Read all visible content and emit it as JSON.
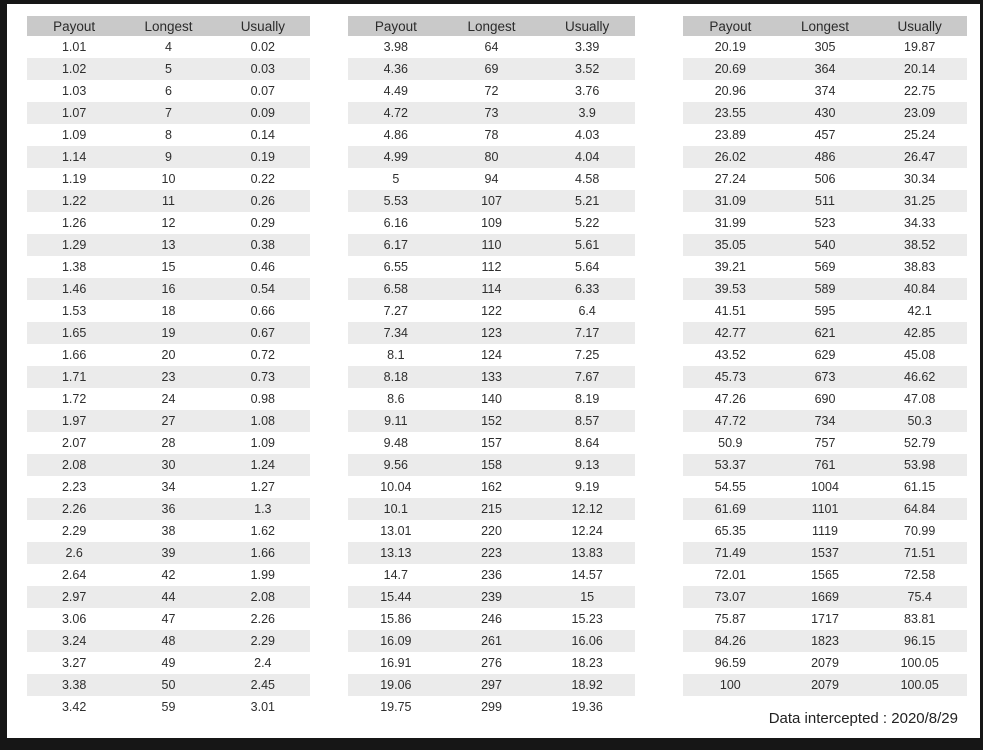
{
  "columns": [
    "Payout",
    "Longest",
    "Usually"
  ],
  "tables": [
    {
      "name": "payout-table-left",
      "rows": [
        [
          "1.01",
          "4",
          "0.02"
        ],
        [
          "1.02",
          "5",
          "0.03"
        ],
        [
          "1.03",
          "6",
          "0.07"
        ],
        [
          "1.07",
          "7",
          "0.09"
        ],
        [
          "1.09",
          "8",
          "0.14"
        ],
        [
          "1.14",
          "9",
          "0.19"
        ],
        [
          "1.19",
          "10",
          "0.22"
        ],
        [
          "1.22",
          "11",
          "0.26"
        ],
        [
          "1.26",
          "12",
          "0.29"
        ],
        [
          "1.29",
          "13",
          "0.38"
        ],
        [
          "1.38",
          "15",
          "0.46"
        ],
        [
          "1.46",
          "16",
          "0.54"
        ],
        [
          "1.53",
          "18",
          "0.66"
        ],
        [
          "1.65",
          "19",
          "0.67"
        ],
        [
          "1.66",
          "20",
          "0.72"
        ],
        [
          "1.71",
          "23",
          "0.73"
        ],
        [
          "1.72",
          "24",
          "0.98"
        ],
        [
          "1.97",
          "27",
          "1.08"
        ],
        [
          "2.07",
          "28",
          "1.09"
        ],
        [
          "2.08",
          "30",
          "1.24"
        ],
        [
          "2.23",
          "34",
          "1.27"
        ],
        [
          "2.26",
          "36",
          "1.3"
        ],
        [
          "2.29",
          "38",
          "1.62"
        ],
        [
          "2.6",
          "39",
          "1.66"
        ],
        [
          "2.64",
          "42",
          "1.99"
        ],
        [
          "2.97",
          "44",
          "2.08"
        ],
        [
          "3.06",
          "47",
          "2.26"
        ],
        [
          "3.24",
          "48",
          "2.29"
        ],
        [
          "3.27",
          "49",
          "2.4"
        ],
        [
          "3.38",
          "50",
          "2.45"
        ],
        [
          "3.42",
          "59",
          "3.01"
        ]
      ]
    },
    {
      "name": "payout-table-middle",
      "rows": [
        [
          "3.98",
          "64",
          "3.39"
        ],
        [
          "4.36",
          "69",
          "3.52"
        ],
        [
          "4.49",
          "72",
          "3.76"
        ],
        [
          "4.72",
          "73",
          "3.9"
        ],
        [
          "4.86",
          "78",
          "4.03"
        ],
        [
          "4.99",
          "80",
          "4.04"
        ],
        [
          "5",
          "94",
          "4.58"
        ],
        [
          "5.53",
          "107",
          "5.21"
        ],
        [
          "6.16",
          "109",
          "5.22"
        ],
        [
          "6.17",
          "110",
          "5.61"
        ],
        [
          "6.55",
          "112",
          "5.64"
        ],
        [
          "6.58",
          "114",
          "6.33"
        ],
        [
          "7.27",
          "122",
          "6.4"
        ],
        [
          "7.34",
          "123",
          "7.17"
        ],
        [
          "8.1",
          "124",
          "7.25"
        ],
        [
          "8.18",
          "133",
          "7.67"
        ],
        [
          "8.6",
          "140",
          "8.19"
        ],
        [
          "9.11",
          "152",
          "8.57"
        ],
        [
          "9.48",
          "157",
          "8.64"
        ],
        [
          "9.56",
          "158",
          "9.13"
        ],
        [
          "10.04",
          "162",
          "9.19"
        ],
        [
          "10.1",
          "215",
          "12.12"
        ],
        [
          "13.01",
          "220",
          "12.24"
        ],
        [
          "13.13",
          "223",
          "13.83"
        ],
        [
          "14.7",
          "236",
          "14.57"
        ],
        [
          "15.44",
          "239",
          "15"
        ],
        [
          "15.86",
          "246",
          "15.23"
        ],
        [
          "16.09",
          "261",
          "16.06"
        ],
        [
          "16.91",
          "276",
          "18.23"
        ],
        [
          "19.06",
          "297",
          "18.92"
        ],
        [
          "19.75",
          "299",
          "19.36"
        ]
      ]
    },
    {
      "name": "payout-table-right",
      "rows": [
        [
          "20.19",
          "305",
          "19.87"
        ],
        [
          "20.69",
          "364",
          "20.14"
        ],
        [
          "20.96",
          "374",
          "22.75"
        ],
        [
          "23.55",
          "430",
          "23.09"
        ],
        [
          "23.89",
          "457",
          "25.24"
        ],
        [
          "26.02",
          "486",
          "26.47"
        ],
        [
          "27.24",
          "506",
          "30.34"
        ],
        [
          "31.09",
          "511",
          "31.25"
        ],
        [
          "31.99",
          "523",
          "34.33"
        ],
        [
          "35.05",
          "540",
          "38.52"
        ],
        [
          "39.21",
          "569",
          "38.83"
        ],
        [
          "39.53",
          "589",
          "40.84"
        ],
        [
          "41.51",
          "595",
          "42.1"
        ],
        [
          "42.77",
          "621",
          "42.85"
        ],
        [
          "43.52",
          "629",
          "45.08"
        ],
        [
          "45.73",
          "673",
          "46.62"
        ],
        [
          "47.26",
          "690",
          "47.08"
        ],
        [
          "47.72",
          "734",
          "50.3"
        ],
        [
          "50.9",
          "757",
          "52.79"
        ],
        [
          "53.37",
          "761",
          "53.98"
        ],
        [
          "54.55",
          "1004",
          "61.15"
        ],
        [
          "61.69",
          "1101",
          "64.84"
        ],
        [
          "65.35",
          "1119",
          "70.99"
        ],
        [
          "71.49",
          "1537",
          "71.51"
        ],
        [
          "72.01",
          "1565",
          "72.58"
        ],
        [
          "73.07",
          "1669",
          "75.4"
        ],
        [
          "75.87",
          "1717",
          "83.81"
        ],
        [
          "84.26",
          "1823",
          "96.15"
        ],
        [
          "96.59",
          "2079",
          "100.05"
        ],
        [
          "100",
          "2079",
          "100.05"
        ]
      ]
    }
  ],
  "footer": {
    "text": "Data intercepted : 2020/8/29"
  },
  "colors": {
    "header_bg": "#c9c9c9",
    "stripe_bg": "#ebebeb",
    "text": "#2e2e2e",
    "frame": "#161616",
    "page_bg": "#ffffff"
  }
}
